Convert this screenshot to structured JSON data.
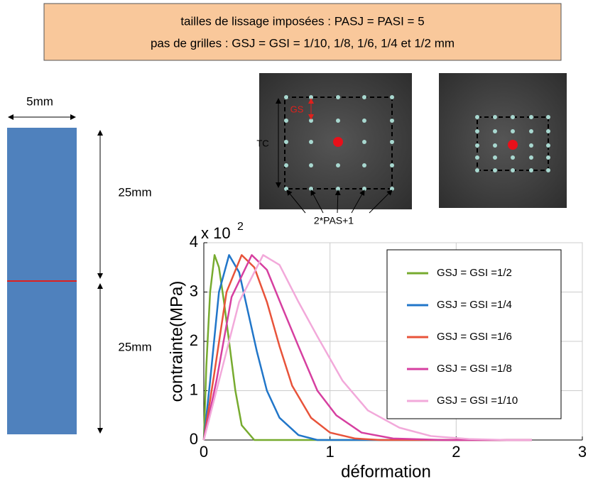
{
  "header": {
    "lines": [
      "tailles de lissage imposées : PASJ = PASI = 5",
      "pas de grilles : GSJ = GSI = 1/10, 1/8, 1/6, 1/4 et 1/2 mm"
    ]
  },
  "specimen": {
    "width_label": "5mm",
    "upper_label": "25mm",
    "lower_label": "25mm"
  },
  "photos": {
    "gs_label": "GS",
    "tc_label": "TC",
    "pas_label": "2*PAS+1"
  },
  "chart_data": {
    "type": "line",
    "x_label": "déformation",
    "y_label": "contrainte(MPa)",
    "y_multiplier": {
      "base": "x 10",
      "exponent": "2"
    },
    "xlim": [
      0,
      3
    ],
    "xticks": [
      0,
      1,
      2,
      3
    ],
    "ylim": [
      0,
      4
    ],
    "yticks": [
      0,
      1,
      2,
      3,
      4
    ],
    "grid": true,
    "legend": "upper right",
    "series": [
      {
        "name": "GSJ = GSI =1/2",
        "color": "#77ab2f",
        "x": [
          0,
          0.02,
          0.05,
          0.085,
          0.12,
          0.16,
          0.2,
          0.25,
          0.3,
          0.4,
          2.6
        ],
        "values": [
          0,
          1.5,
          3.0,
          3.75,
          3.5,
          2.8,
          2.0,
          1.0,
          0.3,
          0,
          0
        ]
      },
      {
        "name": "GSJ = GSI =1/4",
        "color": "#2176c9",
        "x": [
          0,
          0.05,
          0.12,
          0.2,
          0.28,
          0.35,
          0.42,
          0.5,
          0.6,
          0.75,
          0.9,
          2.6
        ],
        "values": [
          0,
          1.2,
          3.0,
          3.75,
          3.4,
          2.6,
          1.8,
          1.0,
          0.45,
          0.1,
          0,
          0
        ]
      },
      {
        "name": "GSJ = GSI =1/6",
        "color": "#e8533a",
        "x": [
          0,
          0.08,
          0.18,
          0.3,
          0.4,
          0.5,
          0.6,
          0.7,
          0.85,
          1.0,
          1.2,
          1.4,
          2.6
        ],
        "values": [
          0,
          1.3,
          3.0,
          3.75,
          3.5,
          2.8,
          1.9,
          1.1,
          0.45,
          0.15,
          0.03,
          0,
          0
        ]
      },
      {
        "name": "GSJ = GSI =1/8",
        "color": "#d63fa0",
        "x": [
          0,
          0.1,
          0.22,
          0.38,
          0.5,
          0.62,
          0.75,
          0.9,
          1.05,
          1.25,
          1.5,
          1.9,
          2.6
        ],
        "values": [
          0,
          1.2,
          2.9,
          3.75,
          3.45,
          2.7,
          1.9,
          1.0,
          0.5,
          0.15,
          0.03,
          0,
          0
        ]
      },
      {
        "name": "GSJ = GSI =1/10",
        "color": "#f2a9da",
        "x": [
          0,
          0.12,
          0.28,
          0.47,
          0.6,
          0.75,
          0.9,
          1.1,
          1.3,
          1.55,
          1.8,
          2.1,
          2.4,
          2.6
        ],
        "values": [
          0,
          1.2,
          2.8,
          3.75,
          3.55,
          2.8,
          2.1,
          1.2,
          0.6,
          0.25,
          0.08,
          0.02,
          0,
          0
        ]
      }
    ]
  }
}
